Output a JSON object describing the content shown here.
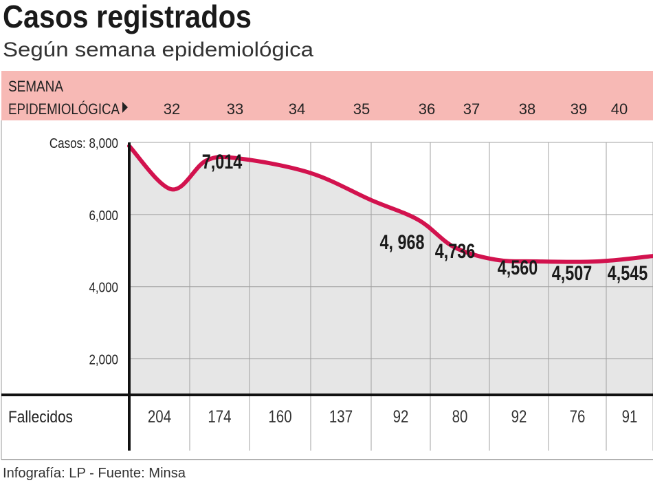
{
  "title": "Casos registrados",
  "subtitle": "Según semana epidemiológica",
  "header_band": {
    "label_line1": "SEMANA",
    "label_line2": "EPIDEMIOLÓGICA",
    "arrow_icon": "triangle-right",
    "color": "#f7b9b5"
  },
  "footer": "Infografía: LP - Fuente: Minsa",
  "colors": {
    "line": "#d2124e",
    "area": "#e6e6e6",
    "grid": "#a0a0a0",
    "axis": "#111111"
  },
  "chart_data": {
    "type": "area",
    "title": "Casos registrados",
    "subtitle": "Según semana epidemiológica",
    "xlabel": "SEMANA EPIDEMIOLÓGICA",
    "ylabel": "Casos",
    "ylim": [
      1000,
      8000
    ],
    "grid": true,
    "y_ticks": [
      {
        "value": 8000,
        "label": "Casos: 8,000"
      },
      {
        "value": 6000,
        "label": "6,000"
      },
      {
        "value": 4000,
        "label": "4,000"
      },
      {
        "value": 2000,
        "label": "2,000"
      }
    ],
    "weeks": [
      "32",
      "33",
      "34",
      "35",
      "36",
      "37",
      "38",
      "39",
      "40"
    ],
    "line_points": [
      {
        "week": 31.5,
        "cases": 7900
      },
      {
        "week": 32.2,
        "cases": 6700
      },
      {
        "week": 32.78,
        "cases": 7500
      },
      {
        "week": 33.35,
        "cases": 7550
      },
      {
        "week": 34.5,
        "cases": 7150
      },
      {
        "week": 35.5,
        "cases": 6400
      },
      {
        "week": 36.3,
        "cases": 5850
      },
      {
        "week": 36.9,
        "cases": 5100
      },
      {
        "week": 37.6,
        "cases": 4750
      },
      {
        "week": 38.3,
        "cases": 4700
      },
      {
        "week": 39.35,
        "cases": 4700
      },
      {
        "week": 40.5,
        "cases": 4850
      }
    ],
    "data_labels": [
      {
        "week": "33",
        "label": "7,014"
      },
      {
        "week": "36",
        "label": "4, 968"
      },
      {
        "week": "37",
        "label": "4,736"
      },
      {
        "week": "38",
        "label": "4,560"
      },
      {
        "week": "39",
        "label": "4,507"
      },
      {
        "week": "40",
        "label": "4,545"
      }
    ],
    "deaths_row": {
      "label": "Fallecidos",
      "values": [
        "204",
        "174",
        "160",
        "137",
        "92",
        "80",
        "92",
        "76",
        "91"
      ]
    }
  }
}
